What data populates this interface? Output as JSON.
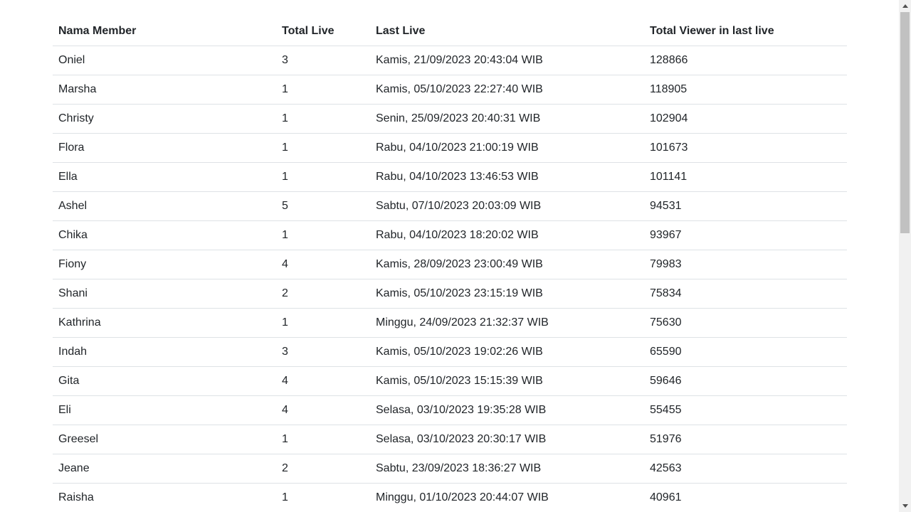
{
  "table": {
    "headers": [
      "Nama Member",
      "Total Live",
      "Last Live",
      "Total Viewer in last live"
    ],
    "rows": [
      [
        "Oniel",
        "3",
        "Kamis, 21/09/2023 20:43:04 WIB",
        "128866"
      ],
      [
        "Marsha",
        "1",
        "Kamis, 05/10/2023 22:27:40 WIB",
        "118905"
      ],
      [
        "Christy",
        "1",
        "Senin, 25/09/2023 20:40:31 WIB",
        "102904"
      ],
      [
        "Flora",
        "1",
        "Rabu, 04/10/2023 21:00:19 WIB",
        "101673"
      ],
      [
        "Ella",
        "1",
        "Rabu, 04/10/2023 13:46:53 WIB",
        "101141"
      ],
      [
        "Ashel",
        "5",
        "Sabtu, 07/10/2023 20:03:09 WIB",
        "94531"
      ],
      [
        "Chika",
        "1",
        "Rabu, 04/10/2023 18:20:02 WIB",
        "93967"
      ],
      [
        "Fiony",
        "4",
        "Kamis, 28/09/2023 23:00:49 WIB",
        "79983"
      ],
      [
        "Shani",
        "2",
        "Kamis, 05/10/2023 23:15:19 WIB",
        "75834"
      ],
      [
        "Kathrina",
        "1",
        "Minggu, 24/09/2023 21:32:37 WIB",
        "75630"
      ],
      [
        "Indah",
        "3",
        "Kamis, 05/10/2023 19:02:26 WIB",
        "65590"
      ],
      [
        "Gita",
        "4",
        "Kamis, 05/10/2023 15:15:39 WIB",
        "59646"
      ],
      [
        "Eli",
        "4",
        "Selasa, 03/10/2023 19:35:28 WIB",
        "55455"
      ],
      [
        "Greesel",
        "1",
        "Selasa, 03/10/2023 20:30:17 WIB",
        "51976"
      ],
      [
        "Jeane",
        "2",
        "Sabtu, 23/09/2023 18:36:27 WIB",
        "42563"
      ],
      [
        "Raisha",
        "1",
        "Minggu, 01/10/2023 20:44:07 WIB",
        "40961"
      ]
    ]
  },
  "scrollbar": {
    "up_icon": "scroll-up-arrow-icon",
    "down_icon": "scroll-down-arrow-icon"
  }
}
